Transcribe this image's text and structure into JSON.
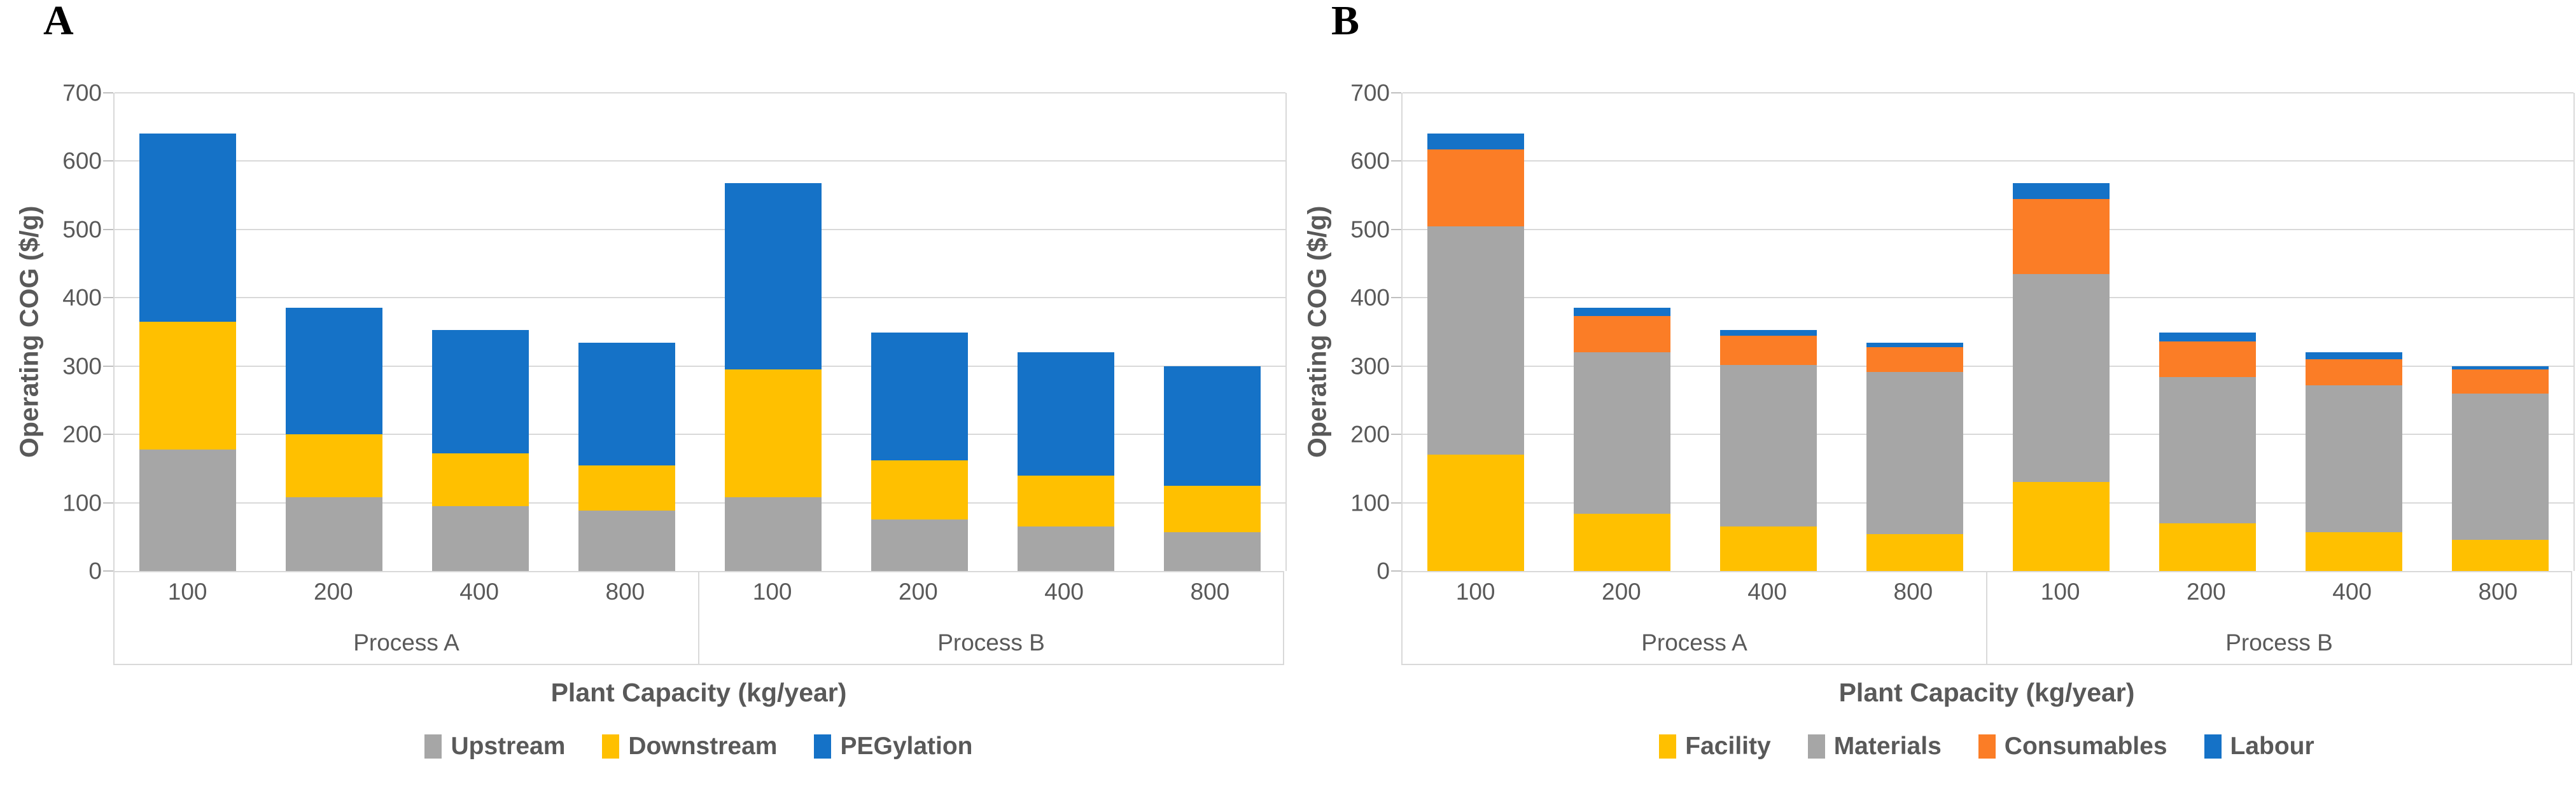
{
  "figure": {
    "background": "#ffffff",
    "text_color": "#595959",
    "gridline_color": "#d9d9d9"
  },
  "chart_data": [
    {
      "panel_letter": "A",
      "type": "bar",
      "stacked": true,
      "ylabel": "Operating COG ($/g)",
      "xlabel": "Plant Capacity (kg/year)",
      "ylim": [
        0,
        700
      ],
      "yticks": [
        "0",
        "100",
        "200",
        "300",
        "400",
        "500",
        "600",
        "700"
      ],
      "grid": true,
      "legend_position": "bottom",
      "groups": [
        {
          "label": "Process A",
          "categories": [
            "100",
            "200",
            "400",
            "800"
          ]
        },
        {
          "label": "Process B",
          "categories": [
            "100",
            "200",
            "400",
            "800"
          ]
        }
      ],
      "series": [
        {
          "name": "Upstream",
          "color": "#a6a6a6",
          "values": [
            [
              178,
              108,
              95,
              88
            ],
            [
              108,
              75,
              65,
              57
            ]
          ]
        },
        {
          "name": "Downstream",
          "color": "#ffc000",
          "values": [
            [
              187,
              92,
              77,
              67
            ],
            [
              187,
              87,
              75,
              68
            ]
          ]
        },
        {
          "name": "PEGylation",
          "color": "#1572c7",
          "values": [
            [
              275,
              185,
              181,
              179
            ],
            [
              273,
              187,
              180,
              175
            ]
          ]
        }
      ],
      "totals": {
        "Process A": [
          640,
          385,
          353,
          334
        ],
        "Process B": [
          568,
          349,
          320,
          300
        ]
      }
    },
    {
      "panel_letter": "B",
      "type": "bar",
      "stacked": true,
      "ylabel": "Operating COG ($/g)",
      "xlabel": "Plant Capacity (kg/year)",
      "ylim": [
        0,
        700
      ],
      "yticks": [
        "0",
        "100",
        "200",
        "300",
        "400",
        "500",
        "600",
        "700"
      ],
      "grid": true,
      "legend_position": "bottom",
      "groups": [
        {
          "label": "Process A",
          "categories": [
            "100",
            "200",
            "400",
            "800"
          ]
        },
        {
          "label": "Process B",
          "categories": [
            "100",
            "200",
            "400",
            "800"
          ]
        }
      ],
      "series": [
        {
          "name": "Facility",
          "color": "#ffc000",
          "values": [
            [
              170,
              84,
              65,
              54
            ],
            [
              130,
              70,
              57,
              46
            ]
          ]
        },
        {
          "name": "Materials",
          "color": "#a6a6a6",
          "values": [
            [
              335,
              236,
              237,
              237
            ],
            [
              305,
              214,
              215,
              214
            ]
          ]
        },
        {
          "name": "Consumables",
          "color": "#fb7d26",
          "values": [
            [
              112,
              53,
              42,
              37
            ],
            [
              110,
              52,
              38,
              35
            ]
          ]
        },
        {
          "name": "Labour",
          "color": "#1572c7",
          "values": [
            [
              23,
              12,
              9,
              6
            ],
            [
              23,
              13,
              10,
              5
            ]
          ]
        }
      ],
      "totals": {
        "Process A": [
          640,
          385,
          353,
          334
        ],
        "Process B": [
          568,
          349,
          320,
          300
        ]
      }
    }
  ]
}
